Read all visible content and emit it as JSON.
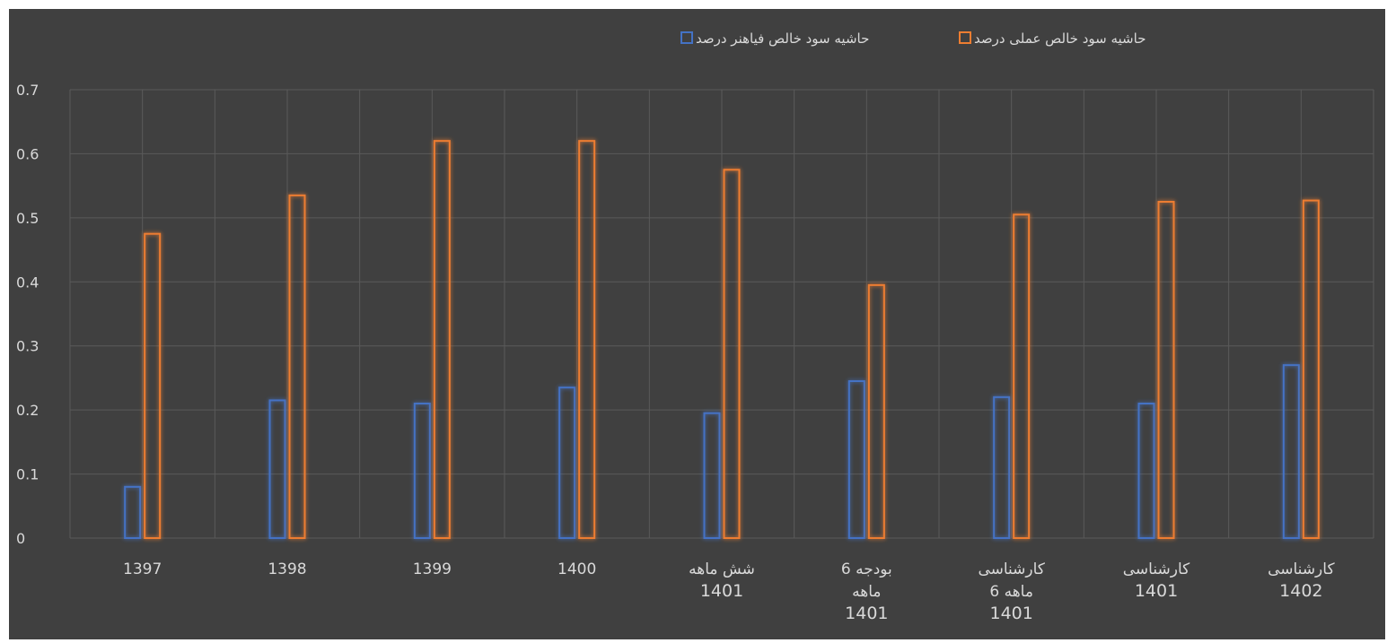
{
  "chart_data": {
    "type": "bar",
    "categories": [
      [
        "1397"
      ],
      [
        "1398"
      ],
      [
        "1399"
      ],
      [
        "1400"
      ],
      [
        "شش ماهه",
        "1401"
      ],
      [
        "بودجه 6",
        "ماهه",
        "1401"
      ],
      [
        "کارشناسی",
        "6 ماهه",
        "1401"
      ],
      [
        "کارشناسی",
        "1401"
      ],
      [
        "کارشناسی",
        "1402"
      ]
    ],
    "series": [
      {
        "name": "حاشیه سود خالص فیاهنر درصد",
        "color": "#4472C4",
        "values": [
          0.08,
          0.215,
          0.21,
          0.235,
          0.195,
          0.245,
          0.22,
          0.21,
          0.27
        ]
      },
      {
        "name": "حاشیه سود خالص عملی درصد",
        "color": "#ED7D31",
        "values": [
          0.475,
          0.535,
          0.62,
          0.62,
          0.575,
          0.395,
          0.505,
          0.525,
          0.527
        ]
      }
    ],
    "ylim": [
      0,
      0.7
    ],
    "yticks": [
      "0",
      "0.1",
      "0.2",
      "0.3",
      "0.4",
      "0.5",
      "0.6",
      "0.7"
    ],
    "grid": true,
    "legend_position": "top-center",
    "background": "#404040",
    "text_color": "#D9D9D9",
    "grid_color": "#5A5A5A"
  }
}
